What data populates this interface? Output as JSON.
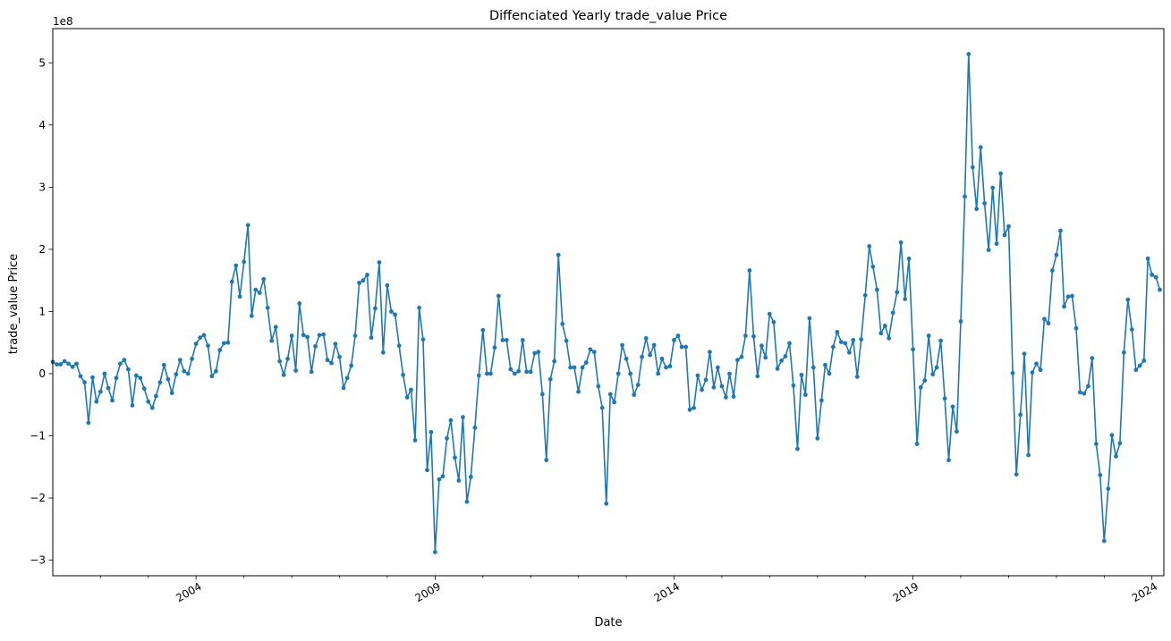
{
  "chart_data": {
    "type": "line",
    "title": "Diffenciated Yearly trade_value Price",
    "xlabel": "Date",
    "ylabel": "trade_value Price",
    "y_offset_label": "1e8",
    "y_scale": 100000000,
    "xlim": [
      "2001-01-01",
      "2024-04-01"
    ],
    "ylim": [
      -325000000,
      555000000
    ],
    "x_ticks": [
      {
        "date": "2004-01-01",
        "label": "2004"
      },
      {
        "date": "2009-01-01",
        "label": "2009"
      },
      {
        "date": "2014-01-01",
        "label": "2014"
      },
      {
        "date": "2019-01-01",
        "label": "2019"
      },
      {
        "date": "2024-01-01",
        "label": "2024"
      }
    ],
    "y_ticks": [
      {
        "value": -300000000,
        "label": "−3"
      },
      {
        "value": -200000000,
        "label": "−2"
      },
      {
        "value": -100000000,
        "label": "−1"
      },
      {
        "value": 0,
        "label": "0"
      },
      {
        "value": 100000000,
        "label": "1"
      },
      {
        "value": 200000000,
        "label": "2"
      },
      {
        "value": 300000000,
        "label": "3"
      },
      {
        "value": 400000000,
        "label": "4"
      },
      {
        "value": 500000000,
        "label": "5"
      }
    ],
    "grid": false,
    "line_color": "#1f77b4",
    "start_month": "2001-01",
    "series": [
      {
        "values": [
          0.19,
          0.15,
          0.15,
          0.2,
          0.16,
          0.11,
          0.16,
          -0.04,
          -0.14,
          -0.79,
          -0.06,
          -0.45,
          -0.29,
          0.0,
          -0.23,
          -0.43,
          -0.07,
          0.16,
          0.22,
          0.07,
          -0.51,
          -0.03,
          -0.07,
          -0.24,
          -0.45,
          -0.55,
          -0.36,
          -0.14,
          0.14,
          -0.09,
          -0.31,
          -0.01,
          0.22,
          0.04,
          0.0,
          0.24,
          0.48,
          0.58,
          0.62,
          0.45,
          -0.04,
          0.04,
          0.38,
          0.49,
          0.5,
          1.48,
          1.74,
          1.24,
          1.8,
          2.39,
          0.93,
          1.35,
          1.3,
          1.52,
          1.06,
          0.53,
          0.75,
          0.2,
          -0.02,
          0.24,
          0.61,
          0.05,
          1.13,
          0.62,
          0.59,
          0.03,
          0.44,
          0.62,
          0.63,
          0.22,
          0.17,
          0.48,
          0.27,
          -0.23,
          -0.07,
          0.13,
          0.61,
          1.46,
          1.5,
          1.59,
          0.58,
          1.05,
          1.79,
          0.34,
          1.42,
          1.0,
          0.95,
          0.45,
          -0.02,
          -0.38,
          -0.26,
          -1.07,
          1.06,
          0.55,
          -1.55,
          -0.94,
          -2.87,
          -1.7,
          -1.65,
          -1.04,
          -0.75,
          -1.35,
          -1.72,
          -0.7,
          -2.06,
          -1.66,
          -0.87,
          -0.03,
          0.7,
          0.0,
          0.0,
          0.42,
          1.25,
          0.54,
          0.54,
          0.07,
          0.0,
          0.04,
          0.54,
          0.03,
          0.03,
          0.33,
          0.35,
          -0.33,
          -1.39,
          -0.09,
          0.2,
          1.91,
          0.8,
          0.53,
          0.1,
          0.1,
          -0.29,
          0.1,
          0.18,
          0.39,
          0.35,
          -0.2,
          -0.55,
          -2.09,
          -0.33,
          -0.46,
          0.0,
          0.46,
          0.24,
          0.0,
          -0.34,
          -0.18,
          0.27,
          0.57,
          0.3,
          0.46,
          0.0,
          0.24,
          0.1,
          0.12,
          0.54,
          0.61,
          0.43,
          0.43,
          -0.58,
          -0.55,
          -0.03,
          -0.26,
          -0.1,
          0.35,
          -0.22,
          0.1,
          -0.2,
          -0.38,
          0.0,
          -0.37,
          0.22,
          0.27,
          0.61,
          1.66,
          0.6,
          -0.04,
          0.45,
          0.26,
          0.96,
          0.83,
          0.08,
          0.21,
          0.28,
          0.49,
          -0.19,
          -1.21,
          -0.02,
          -0.34,
          0.89,
          0.1,
          -1.04,
          -0.43,
          0.14,
          0.0,
          0.43,
          0.67,
          0.51,
          0.49,
          0.34,
          0.54,
          -0.05,
          0.55,
          1.26,
          2.05,
          1.72,
          1.35,
          0.65,
          0.77,
          0.57,
          0.98,
          1.31,
          2.11,
          1.2,
          1.85,
          0.39,
          -1.13,
          -0.22,
          -0.11,
          0.61,
          -0.01,
          0.1,
          0.53,
          -0.4,
          -1.39,
          -0.53,
          -0.93,
          0.84,
          2.85,
          5.14,
          3.32,
          2.65,
          3.64,
          2.74,
          1.99,
          2.99,
          2.09,
          3.22,
          2.23,
          2.37,
          0.01,
          -1.62,
          -0.66,
          0.32,
          -1.31,
          0.02,
          0.16,
          0.06,
          0.88,
          0.81,
          1.66,
          1.91,
          2.3,
          1.08,
          1.24,
          1.25,
          0.73,
          -0.3,
          -0.32,
          -0.2,
          0.25,
          -1.13,
          -1.63,
          -2.69,
          -1.85,
          -0.99,
          -1.33,
          -1.12,
          0.34,
          1.19,
          0.71,
          0.06,
          0.13,
          0.21,
          1.85,
          1.59,
          1.55,
          1.35
        ]
      }
    ]
  }
}
